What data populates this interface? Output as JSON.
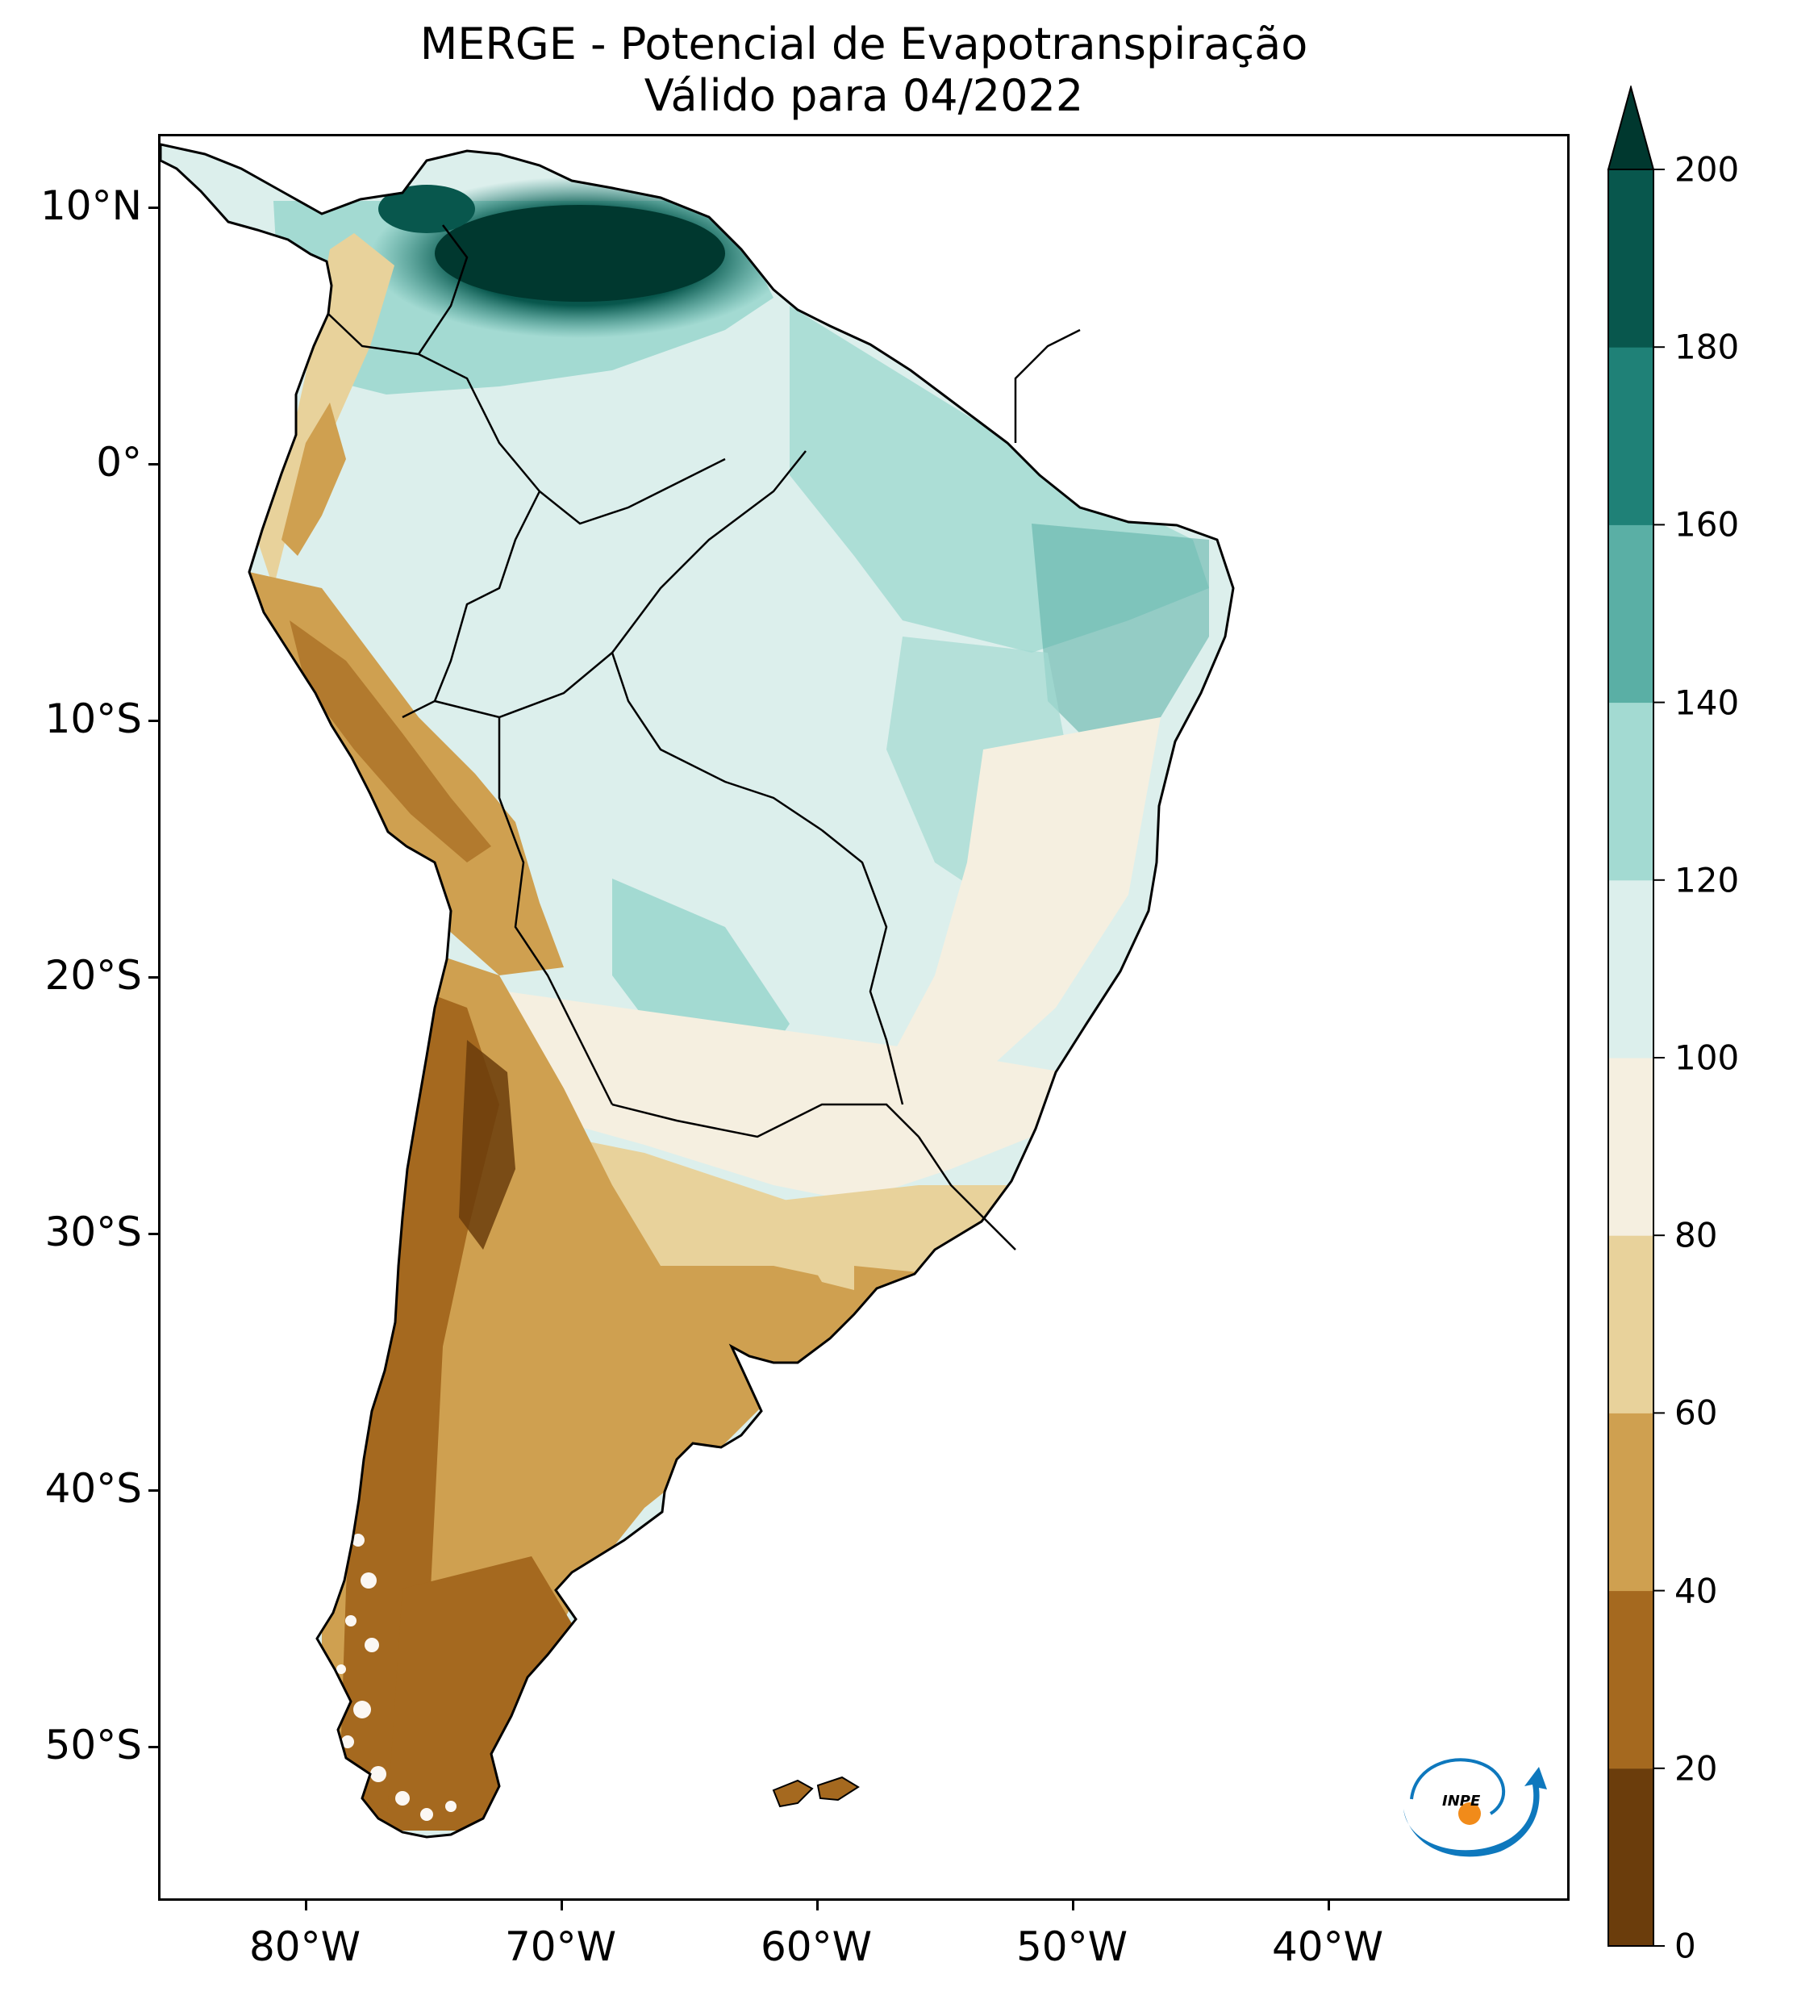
{
  "title": {
    "line1": "MERGE - Potencial de Evapotranspiração",
    "line2": "Válido para 04/2022"
  },
  "axes": {
    "lat_labels": [
      "10°N",
      "0°",
      "10°S",
      "20°S",
      "30°S",
      "40°S",
      "50°S"
    ],
    "lon_labels": [
      "80°W",
      "70°W",
      "60°W",
      "50°W",
      "40°W"
    ]
  },
  "colorbar": {
    "ticks": [
      "0",
      "20",
      "40",
      "60",
      "80",
      "100",
      "120",
      "140",
      "160",
      "180",
      "200"
    ],
    "extend": "max",
    "colors": [
      "#6b3d0c",
      "#a5691f",
      "#cfa050",
      "#e8d29b",
      "#f5efe0",
      "#dcefec",
      "#a3dad2",
      "#5aafa5",
      "#1f8177",
      "#08574d",
      "#00382f"
    ]
  },
  "map": {
    "region": "South America",
    "variable": "Potencial de Evapotranspiração",
    "period": "04/2022",
    "land_outline": "#000000",
    "ocean": "#ffffff"
  },
  "logo": {
    "text": "INPE",
    "colors": {
      "arc": "#0e78bd",
      "dot": "#f18b1a"
    }
  }
}
